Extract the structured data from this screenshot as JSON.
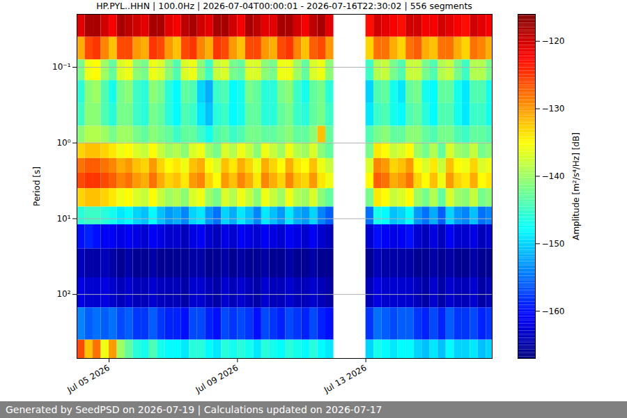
{
  "chart_data": {
    "type": "heatmap",
    "title": "HP.PYL..HHN | 100.0Hz | 2026-07-04T00:00:01 - 2026-07-16T22:30:02 | 556 segments",
    "y_label": "Period [s]",
    "caption": "Generated by SeedPSD on 2026-07-19 | Calculations updated on 2026-07-17",
    "xlim": [
      "2026-07-04T00:00:01",
      "2026-07-16T22:30:02"
    ],
    "xticks": [
      {
        "value": "2026-07-05T00:00",
        "label": "Jul 05 2026"
      },
      {
        "value": "2026-07-09T00:00",
        "label": "Jul 09 2026"
      },
      {
        "value": "2026-07-13T00:00",
        "label": "Jul 13 2026"
      }
    ],
    "ylim": [
      0.02,
      700
    ],
    "yticks": [
      {
        "value": 0.1,
        "label": "10⁻¹"
      },
      {
        "value": 1,
        "label": "10⁰"
      },
      {
        "value": 10,
        "label": "10¹"
      },
      {
        "value": 100,
        "label": "10²"
      }
    ],
    "log": "y",
    "grid": true,
    "x_edges": [
      "2026-07-04T00:00",
      "2026-07-04T06:00",
      "2026-07-04T12:00",
      "2026-07-04T18:00",
      "2026-07-05T00:00",
      "2026-07-05T06:00",
      "2026-07-05T12:00",
      "2026-07-05T18:00",
      "2026-07-06T00:00",
      "2026-07-06T06:00",
      "2026-07-06T12:00",
      "2026-07-06T18:00",
      "2026-07-07T00:00",
      "2026-07-07T06:00",
      "2026-07-07T12:00",
      "2026-07-07T18:00",
      "2026-07-08T00:00",
      "2026-07-08T06:00",
      "2026-07-08T12:00",
      "2026-07-08T18:00",
      "2026-07-09T00:00",
      "2026-07-09T06:00",
      "2026-07-09T12:00",
      "2026-07-09T18:00",
      "2026-07-10T00:00",
      "2026-07-10T06:00",
      "2026-07-10T12:00",
      "2026-07-10T18:00",
      "2026-07-11T00:00",
      "2026-07-11T06:00",
      "2026-07-11T12:00",
      "2026-07-11T18:00",
      "2026-07-12T00:00",
      "2026-07-12T06:00",
      "2026-07-12T12:00",
      "2026-07-12T18:00",
      "2026-07-13T00:00",
      "2026-07-13T06:00",
      "2026-07-13T12:00",
      "2026-07-13T18:00",
      "2026-07-14T00:00",
      "2026-07-14T06:00",
      "2026-07-14T12:00",
      "2026-07-14T18:00",
      "2026-07-15T00:00",
      "2026-07-15T06:00",
      "2026-07-15T12:00",
      "2026-07-15T18:00",
      "2026-07-16T00:00",
      "2026-07-16T06:00",
      "2026-07-16T12:00",
      "2026-07-16T18:00",
      "2026-07-16T22:30"
    ],
    "y_edges": [
      0.02,
      0.04,
      0.08,
      0.15,
      0.3,
      0.6,
      1,
      1.6,
      2.5,
      4,
      7,
      12,
      25,
      60,
      150,
      400,
      700
    ],
    "z": [
      [
        -121,
        -118,
        -118,
        -120,
        -122,
        -118,
        -119,
        -120,
        -121,
        -118,
        -118,
        -121,
        -122,
        -119,
        -118,
        -120,
        -121,
        -118,
        -118,
        -120,
        -122,
        -118,
        -119,
        -121,
        -121,
        -118,
        -118,
        -120,
        -122,
        -119,
        -118,
        -121,
        null,
        null,
        null,
        null,
        -123,
        -120,
        -121,
        -122,
        -123,
        -120,
        -120,
        -122,
        -122,
        -120,
        -121,
        -122,
        -123,
        -120,
        -121,
        -122
      ],
      [
        -131,
        -126,
        -125,
        -129,
        -132,
        -126,
        -126,
        -130,
        -131,
        -125,
        -126,
        -130,
        -132,
        -126,
        -125,
        -129,
        -131,
        -125,
        -126,
        -130,
        -132,
        -126,
        -126,
        -130,
        -131,
        -126,
        -125,
        -129,
        -132,
        -127,
        -126,
        -130,
        null,
        null,
        null,
        null,
        -133,
        -128,
        -128,
        -131,
        -133,
        -128,
        -127,
        -131,
        -132,
        -128,
        -128,
        -131,
        -133,
        -128,
        -129,
        -131
      ],
      [
        -142,
        -136,
        -135,
        -140,
        -143,
        -137,
        -136,
        -141,
        -142,
        -136,
        -137,
        -141,
        -144,
        -137,
        -136,
        -141,
        -145,
        -138,
        -137,
        -142,
        -143,
        -137,
        -137,
        -141,
        -142,
        -136,
        -136,
        -140,
        -143,
        -137,
        -136,
        -141,
        null,
        null,
        null,
        null,
        -145,
        -139,
        -138,
        -142,
        -144,
        -138,
        -138,
        -142,
        -144,
        -139,
        -138,
        -142,
        -145,
        -139,
        -139,
        -142
      ],
      [
        -146,
        -141,
        -140,
        -144,
        -147,
        -142,
        -141,
        -145,
        -146,
        -141,
        -142,
        -146,
        -148,
        -143,
        -144,
        -150,
        -152,
        -145,
        -144,
        -148,
        -147,
        -142,
        -143,
        -146,
        -146,
        -142,
        -141,
        -145,
        -147,
        -143,
        -142,
        -146,
        null,
        null,
        null,
        null,
        -150,
        -144,
        -143,
        -147,
        -149,
        -143,
        -142,
        -147,
        -148,
        -143,
        -143,
        -147,
        -149,
        -144,
        -144,
        -147
      ],
      [
        -145,
        -141,
        -141,
        -144,
        -146,
        -142,
        -142,
        -145,
        -146,
        -142,
        -143,
        -146,
        -148,
        -144,
        -145,
        -149,
        -151,
        -146,
        -145,
        -148,
        -147,
        -143,
        -143,
        -146,
        -146,
        -143,
        -142,
        -145,
        -146,
        -143,
        -142,
        -145,
        null,
        null,
        null,
        null,
        -149,
        -145,
        -144,
        -147,
        -148,
        -144,
        -143,
        -146,
        -148,
        -144,
        -144,
        -147,
        -149,
        -145,
        -145,
        -147
      ],
      [
        -141,
        -139,
        -139,
        -140,
        -142,
        -140,
        -140,
        -142,
        -143,
        -141,
        -142,
        -143,
        -145,
        -143,
        -143,
        -145,
        -147,
        -144,
        -143,
        -145,
        -144,
        -142,
        -142,
        -143,
        -143,
        -142,
        -141,
        -143,
        -143,
        -141,
        -132,
        -143,
        null,
        null,
        null,
        null,
        -144,
        -142,
        -141,
        -143,
        -143,
        -141,
        -141,
        -143,
        -144,
        -142,
        -142,
        -144,
        -145,
        -143,
        -143,
        -144
      ],
      [
        -133,
        -132,
        -132,
        -133,
        -134,
        -136,
        -135,
        -137,
        -138,
        -135,
        -138,
        -140,
        -139,
        -141,
        -137,
        -136,
        -140,
        -142,
        -137,
        -139,
        -136,
        -138,
        -141,
        -136,
        -138,
        -140,
        -136,
        -139,
        -140,
        -137,
        -141,
        -143,
        null,
        null,
        null,
        null,
        -142,
        -134,
        -135,
        -138,
        -137,
        -135,
        -140,
        -142,
        -139,
        -143,
        -137,
        -140,
        -141,
        -138,
        -142,
        -141
      ],
      [
        -128,
        -127,
        -127,
        -128,
        -129,
        -131,
        -130,
        -132,
        -133,
        -130,
        -133,
        -135,
        -134,
        -136,
        -132,
        -131,
        -135,
        -137,
        -132,
        -134,
        -131,
        -133,
        -136,
        -131,
        -133,
        -135,
        -131,
        -134,
        -135,
        -132,
        -136,
        -138,
        null,
        null,
        null,
        null,
        -137,
        -129,
        -130,
        -133,
        -132,
        -130,
        -135,
        -137,
        -134,
        -138,
        -132,
        -135,
        -136,
        -133,
        -137,
        -136
      ],
      [
        -126,
        -125,
        -125,
        -126,
        -127,
        -129,
        -128,
        -130,
        -131,
        -128,
        -131,
        -133,
        -132,
        -134,
        -130,
        -129,
        -133,
        -135,
        -130,
        -132,
        -129,
        -131,
        -134,
        -129,
        -131,
        -133,
        -129,
        -132,
        -133,
        -130,
        -134,
        -136,
        null,
        null,
        null,
        null,
        -135,
        -127,
        -128,
        -131,
        -130,
        -128,
        -133,
        -135,
        -132,
        -136,
        -130,
        -133,
        -134,
        -131,
        -135,
        -134
      ],
      [
        -133,
        -132,
        -132,
        -133,
        -134,
        -136,
        -135,
        -137,
        -138,
        -135,
        -138,
        -140,
        -139,
        -141,
        -137,
        -136,
        -140,
        -142,
        -137,
        -139,
        -136,
        -138,
        -141,
        -136,
        -138,
        -140,
        -136,
        -139,
        -140,
        -137,
        -141,
        -143,
        null,
        null,
        null,
        null,
        -142,
        -134,
        -135,
        -138,
        -137,
        -135,
        -140,
        -142,
        -139,
        -143,
        -137,
        -140,
        -141,
        -138,
        -142,
        -141
      ],
      [
        -146,
        -145,
        -145,
        -146,
        -147,
        -149,
        -148,
        -150,
        -151,
        -148,
        -151,
        -153,
        -152,
        -154,
        -150,
        -149,
        -153,
        -155,
        -150,
        -152,
        -149,
        -151,
        -154,
        -149,
        -151,
        -153,
        -149,
        -152,
        -153,
        -150,
        -154,
        -156,
        null,
        null,
        null,
        null,
        -155,
        -147,
        -148,
        -151,
        -150,
        -148,
        -153,
        -155,
        -152,
        -156,
        -150,
        -153,
        -154,
        -151,
        -155,
        -154
      ],
      [
        -160,
        -159,
        -160,
        -161,
        -161,
        -162,
        -161,
        -162,
        -163,
        -161,
        -162,
        -163,
        -163,
        -164,
        -162,
        -161,
        -163,
        -164,
        -162,
        -163,
        -161,
        -162,
        -163,
        -161,
        -162,
        -163,
        -161,
        -162,
        -163,
        -161,
        -163,
        -164,
        null,
        null,
        null,
        null,
        -163,
        -160,
        -161,
        -162,
        -161,
        -160,
        -163,
        -164,
        -162,
        -164,
        -161,
        -163,
        -163,
        -162,
        -164,
        -163
      ],
      [
        -164,
        -165,
        -165,
        -164,
        -165,
        -166,
        -165,
        -166,
        -166,
        -165,
        -166,
        -166,
        -166,
        -166,
        -165,
        -165,
        -166,
        -166,
        -165,
        -166,
        -165,
        -166,
        -166,
        -165,
        -166,
        -166,
        -165,
        -166,
        -166,
        -165,
        -166,
        -166,
        null,
        null,
        null,
        null,
        -166,
        -164,
        -165,
        -165,
        -165,
        -165,
        -166,
        -166,
        -165,
        -166,
        -165,
        -166,
        -166,
        -165,
        -166,
        -166
      ],
      [
        -162,
        -163,
        -163,
        -162,
        -163,
        -164,
        -163,
        -164,
        -164,
        -163,
        -164,
        -164,
        -164,
        -165,
        -163,
        -163,
        -164,
        -165,
        -163,
        -164,
        -163,
        -164,
        -165,
        -163,
        -164,
        -164,
        -163,
        -164,
        -164,
        -163,
        -164,
        -165,
        null,
        null,
        null,
        null,
        -164,
        -162,
        -163,
        -163,
        -163,
        -163,
        -164,
        -165,
        -163,
        -165,
        -163,
        -164,
        -164,
        -163,
        -165,
        -164
      ],
      [
        -154,
        -156,
        -155,
        -156,
        -155,
        -157,
        -156,
        -158,
        -158,
        -156,
        -158,
        -159,
        -159,
        -160,
        -157,
        -157,
        -159,
        -160,
        -157,
        -158,
        -157,
        -158,
        -160,
        -157,
        -158,
        -159,
        -157,
        -158,
        -159,
        -157,
        -159,
        -160,
        null,
        null,
        null,
        null,
        -158,
        -155,
        -156,
        -157,
        -156,
        -156,
        -158,
        -159,
        -157,
        -159,
        -156,
        -158,
        -158,
        -157,
        -159,
        -158
      ],
      [
        -126,
        -132,
        -128,
        -136,
        -130,
        -140,
        -143,
        -146,
        -147,
        -144,
        -147,
        -148,
        -148,
        -149,
        -146,
        -146,
        -148,
        -149,
        -146,
        -147,
        -146,
        -147,
        -149,
        -146,
        -147,
        -148,
        -146,
        -147,
        -148,
        -146,
        -148,
        -149,
        null,
        null,
        null,
        null,
        -150,
        -147,
        -148,
        -149,
        -148,
        -148,
        -150,
        -151,
        -149,
        -151,
        -148,
        -150,
        -150,
        -149,
        -151,
        -150
      ]
    ],
    "colorbar": {
      "label": "Amplitude [m²/s⁴/Hz] [dB]",
      "lim": [
        -167,
        -116
      ],
      "ticks": [
        {
          "value": -160,
          "label": "−160"
        },
        {
          "value": -150,
          "label": "−150"
        },
        {
          "value": -140,
          "label": "−140"
        },
        {
          "value": -130,
          "label": "−130"
        },
        {
          "value": -120,
          "label": "−120"
        }
      ]
    }
  }
}
